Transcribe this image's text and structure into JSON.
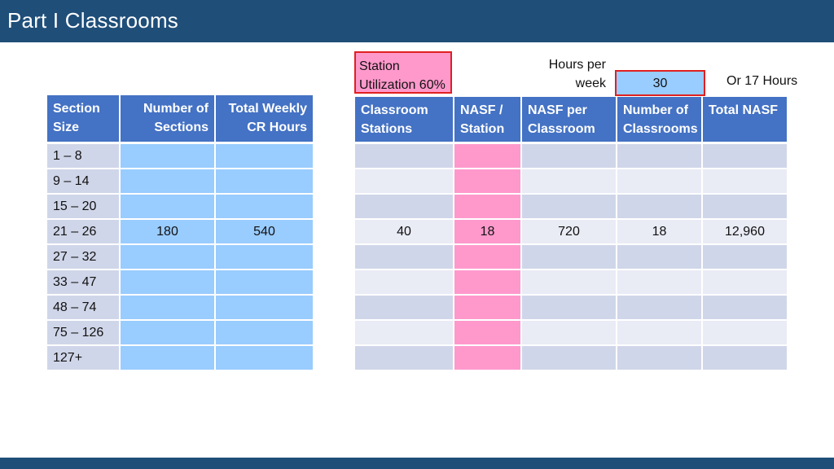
{
  "header": {
    "title": "Part I  Classrooms"
  },
  "left_table": {
    "columns": [
      "Section Size",
      "Number of Sections",
      "Total Weekly CR Hours"
    ],
    "column_lines": [
      [
        "Section",
        "Size"
      ],
      [
        "Number of",
        "Sections"
      ],
      [
        "Total Weekly",
        "CR Hours"
      ]
    ],
    "rows": [
      {
        "size": "1 – 8",
        "sections": "",
        "hours": ""
      },
      {
        "size": "9 – 14",
        "sections": "",
        "hours": ""
      },
      {
        "size": "15 – 20",
        "sections": "",
        "hours": ""
      },
      {
        "size": "21 – 26",
        "sections": "180",
        "hours": "540"
      },
      {
        "size": "27 – 32",
        "sections": "",
        "hours": ""
      },
      {
        "size": "33 – 47",
        "sections": "",
        "hours": ""
      },
      {
        "size": "48 – 74",
        "sections": "",
        "hours": ""
      },
      {
        "size": "75 – 126",
        "sections": "",
        "hours": ""
      },
      {
        "size": "127+",
        "sections": "",
        "hours": ""
      }
    ]
  },
  "station_box": {
    "line1": "Station",
    "line2": "Utilization 60%"
  },
  "hours_per_week": {
    "line1": "Hours per",
    "line2": "week",
    "value": "30",
    "alt": "Or 17 Hours"
  },
  "right_table": {
    "column_lines": [
      [
        "Classroom",
        "Stations"
      ],
      [
        "NASF /",
        "Station"
      ],
      [
        "NASF per",
        "Classroom"
      ],
      [
        "Number of",
        "Classrooms"
      ],
      [
        "Total NASF",
        ""
      ]
    ],
    "rows": [
      [
        "",
        "",
        "",
        "",
        ""
      ],
      [
        "",
        "",
        "",
        "",
        ""
      ],
      [
        "",
        "",
        "",
        "",
        ""
      ],
      [
        "40",
        "18",
        "720",
        "18",
        "12,960"
      ],
      [
        "",
        "",
        "",
        "",
        ""
      ],
      [
        "",
        "",
        "",
        "",
        ""
      ],
      [
        "",
        "",
        "",
        "",
        ""
      ],
      [
        "",
        "",
        "",
        "",
        ""
      ],
      [
        "",
        "",
        "",
        "",
        ""
      ]
    ]
  },
  "colors": {
    "header_blue": "#1f4e79",
    "table_header": "#4472c4",
    "light_blue": "#99ccff",
    "pink": "#ff99cc",
    "highlight_border": "#e02020"
  }
}
